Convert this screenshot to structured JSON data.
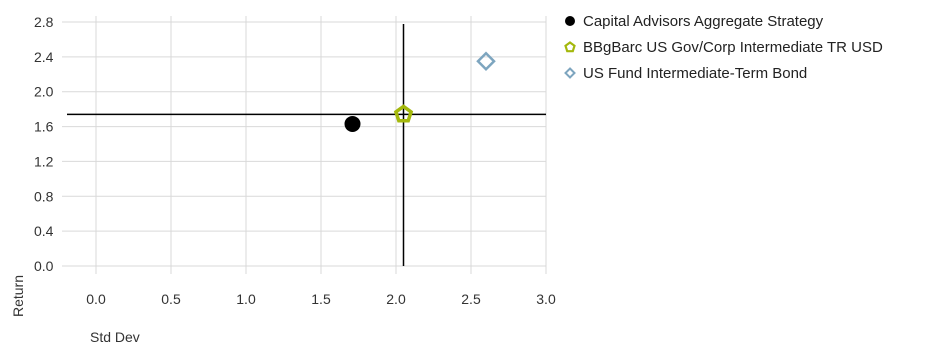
{
  "chart_data": {
    "type": "scatter",
    "xlabel": "Std Dev",
    "ylabel": "Return",
    "xlim": [
      0,
      3.0
    ],
    "ylim": [
      0,
      2.8
    ],
    "x_ticks": [
      "0.0",
      "0.5",
      "1.0",
      "1.5",
      "2.0",
      "2.5",
      "3.0"
    ],
    "y_ticks": [
      "0.0",
      "0.4",
      "0.8",
      "1.2",
      "1.6",
      "2.0",
      "2.4",
      "2.8"
    ],
    "grid": "vertical",
    "legend_position": "right",
    "crosshair": {
      "x": 2.05,
      "y": 1.74
    },
    "series": [
      {
        "name": "Capital Advisors Aggregate Strategy",
        "x": 1.71,
        "y": 1.63,
        "marker": "circle",
        "color": "#000000"
      },
      {
        "name": "BBgBarc US Gov/Corp Intermediate TR USD",
        "x": 2.05,
        "y": 1.74,
        "marker": "pentagon",
        "color": "#a4b80c"
      },
      {
        "name": "US Fund Intermediate-Term Bond",
        "x": 2.6,
        "y": 2.35,
        "marker": "diamond",
        "color": "#7da5bf"
      }
    ]
  }
}
